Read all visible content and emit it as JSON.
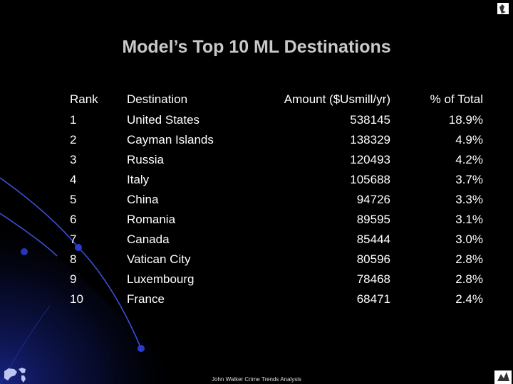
{
  "slide": {
    "title": "Model’s Top 10 ML Destinations",
    "footer": "John Walker Crime Trends Analysis"
  },
  "table": {
    "headers": {
      "rank": "Rank",
      "destination": "Destination",
      "amount": "Amount ($Usmill/yr)",
      "percent": "% of Total"
    },
    "rows": [
      {
        "rank": "1",
        "destination": "United States",
        "amount": "538145",
        "percent": "18.9%"
      },
      {
        "rank": "2",
        "destination": "Cayman Islands",
        "amount": "138329",
        "percent": "4.9%"
      },
      {
        "rank": "3",
        "destination": "Russia",
        "amount": "120493",
        "percent": "4.2%"
      },
      {
        "rank": "4",
        "destination": "Italy",
        "amount": "105688",
        "percent": "3.7%"
      },
      {
        "rank": "5",
        "destination": "China",
        "amount": "94726",
        "percent": "3.3%"
      },
      {
        "rank": "6",
        "destination": "Romania",
        "amount": "89595",
        "percent": "3.1%"
      },
      {
        "rank": "7",
        "destination": "Canada",
        "amount": "85444",
        "percent": "3.0%"
      },
      {
        "rank": "8",
        "destination": "Vatican City",
        "amount": "80596",
        "percent": "2.8%"
      },
      {
        "rank": "9",
        "destination": "Luxembourg",
        "amount": "78468",
        "percent": "2.8%"
      },
      {
        "rank": "10",
        "destination": "France",
        "amount": "68471",
        "percent": "2.4%"
      }
    ]
  },
  "colors": {
    "background": "#000000",
    "title": "#c9c9c9",
    "accent_blue": "#1a2a8c"
  }
}
